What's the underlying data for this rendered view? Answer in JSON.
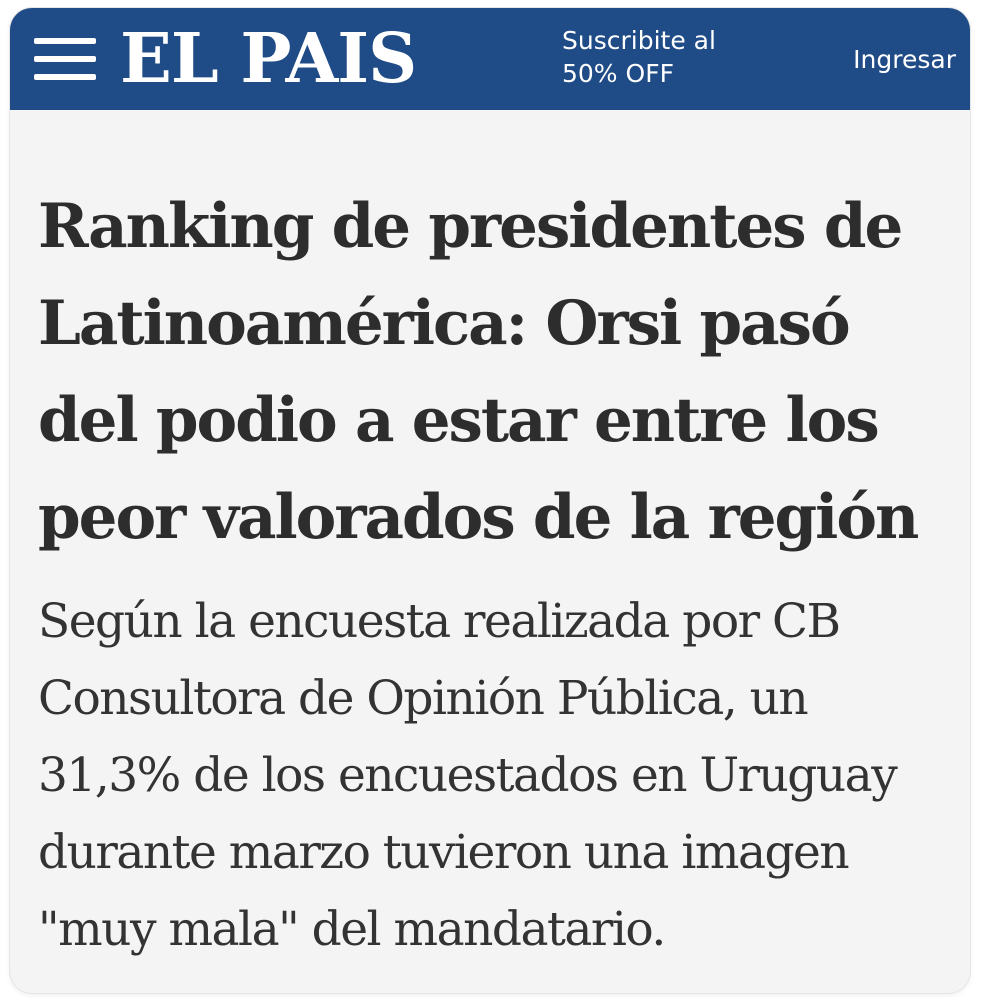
{
  "header": {
    "logo_text": "EL PAIS",
    "promo": {
      "line1": "Suscribite al",
      "line2": "50% OFF"
    },
    "login_label": "Ingresar",
    "menu_icon": "hamburger-menu-icon",
    "background_color": "#1f4b86"
  },
  "article": {
    "headline_lines": [
      "Ranking de presidentes de",
      "Latinoamérica: Orsi pasó",
      "del podio a estar entre los",
      "peor valorados de la región"
    ],
    "lead_lines": [
      "Según la encuesta realizada por CB",
      "Consultora de Opinión Pública, un",
      "31,3% de los encuestados en Uruguay",
      "durante marzo tuvieron una imagen",
      "\"muy mala\" del mandatario."
    ]
  }
}
